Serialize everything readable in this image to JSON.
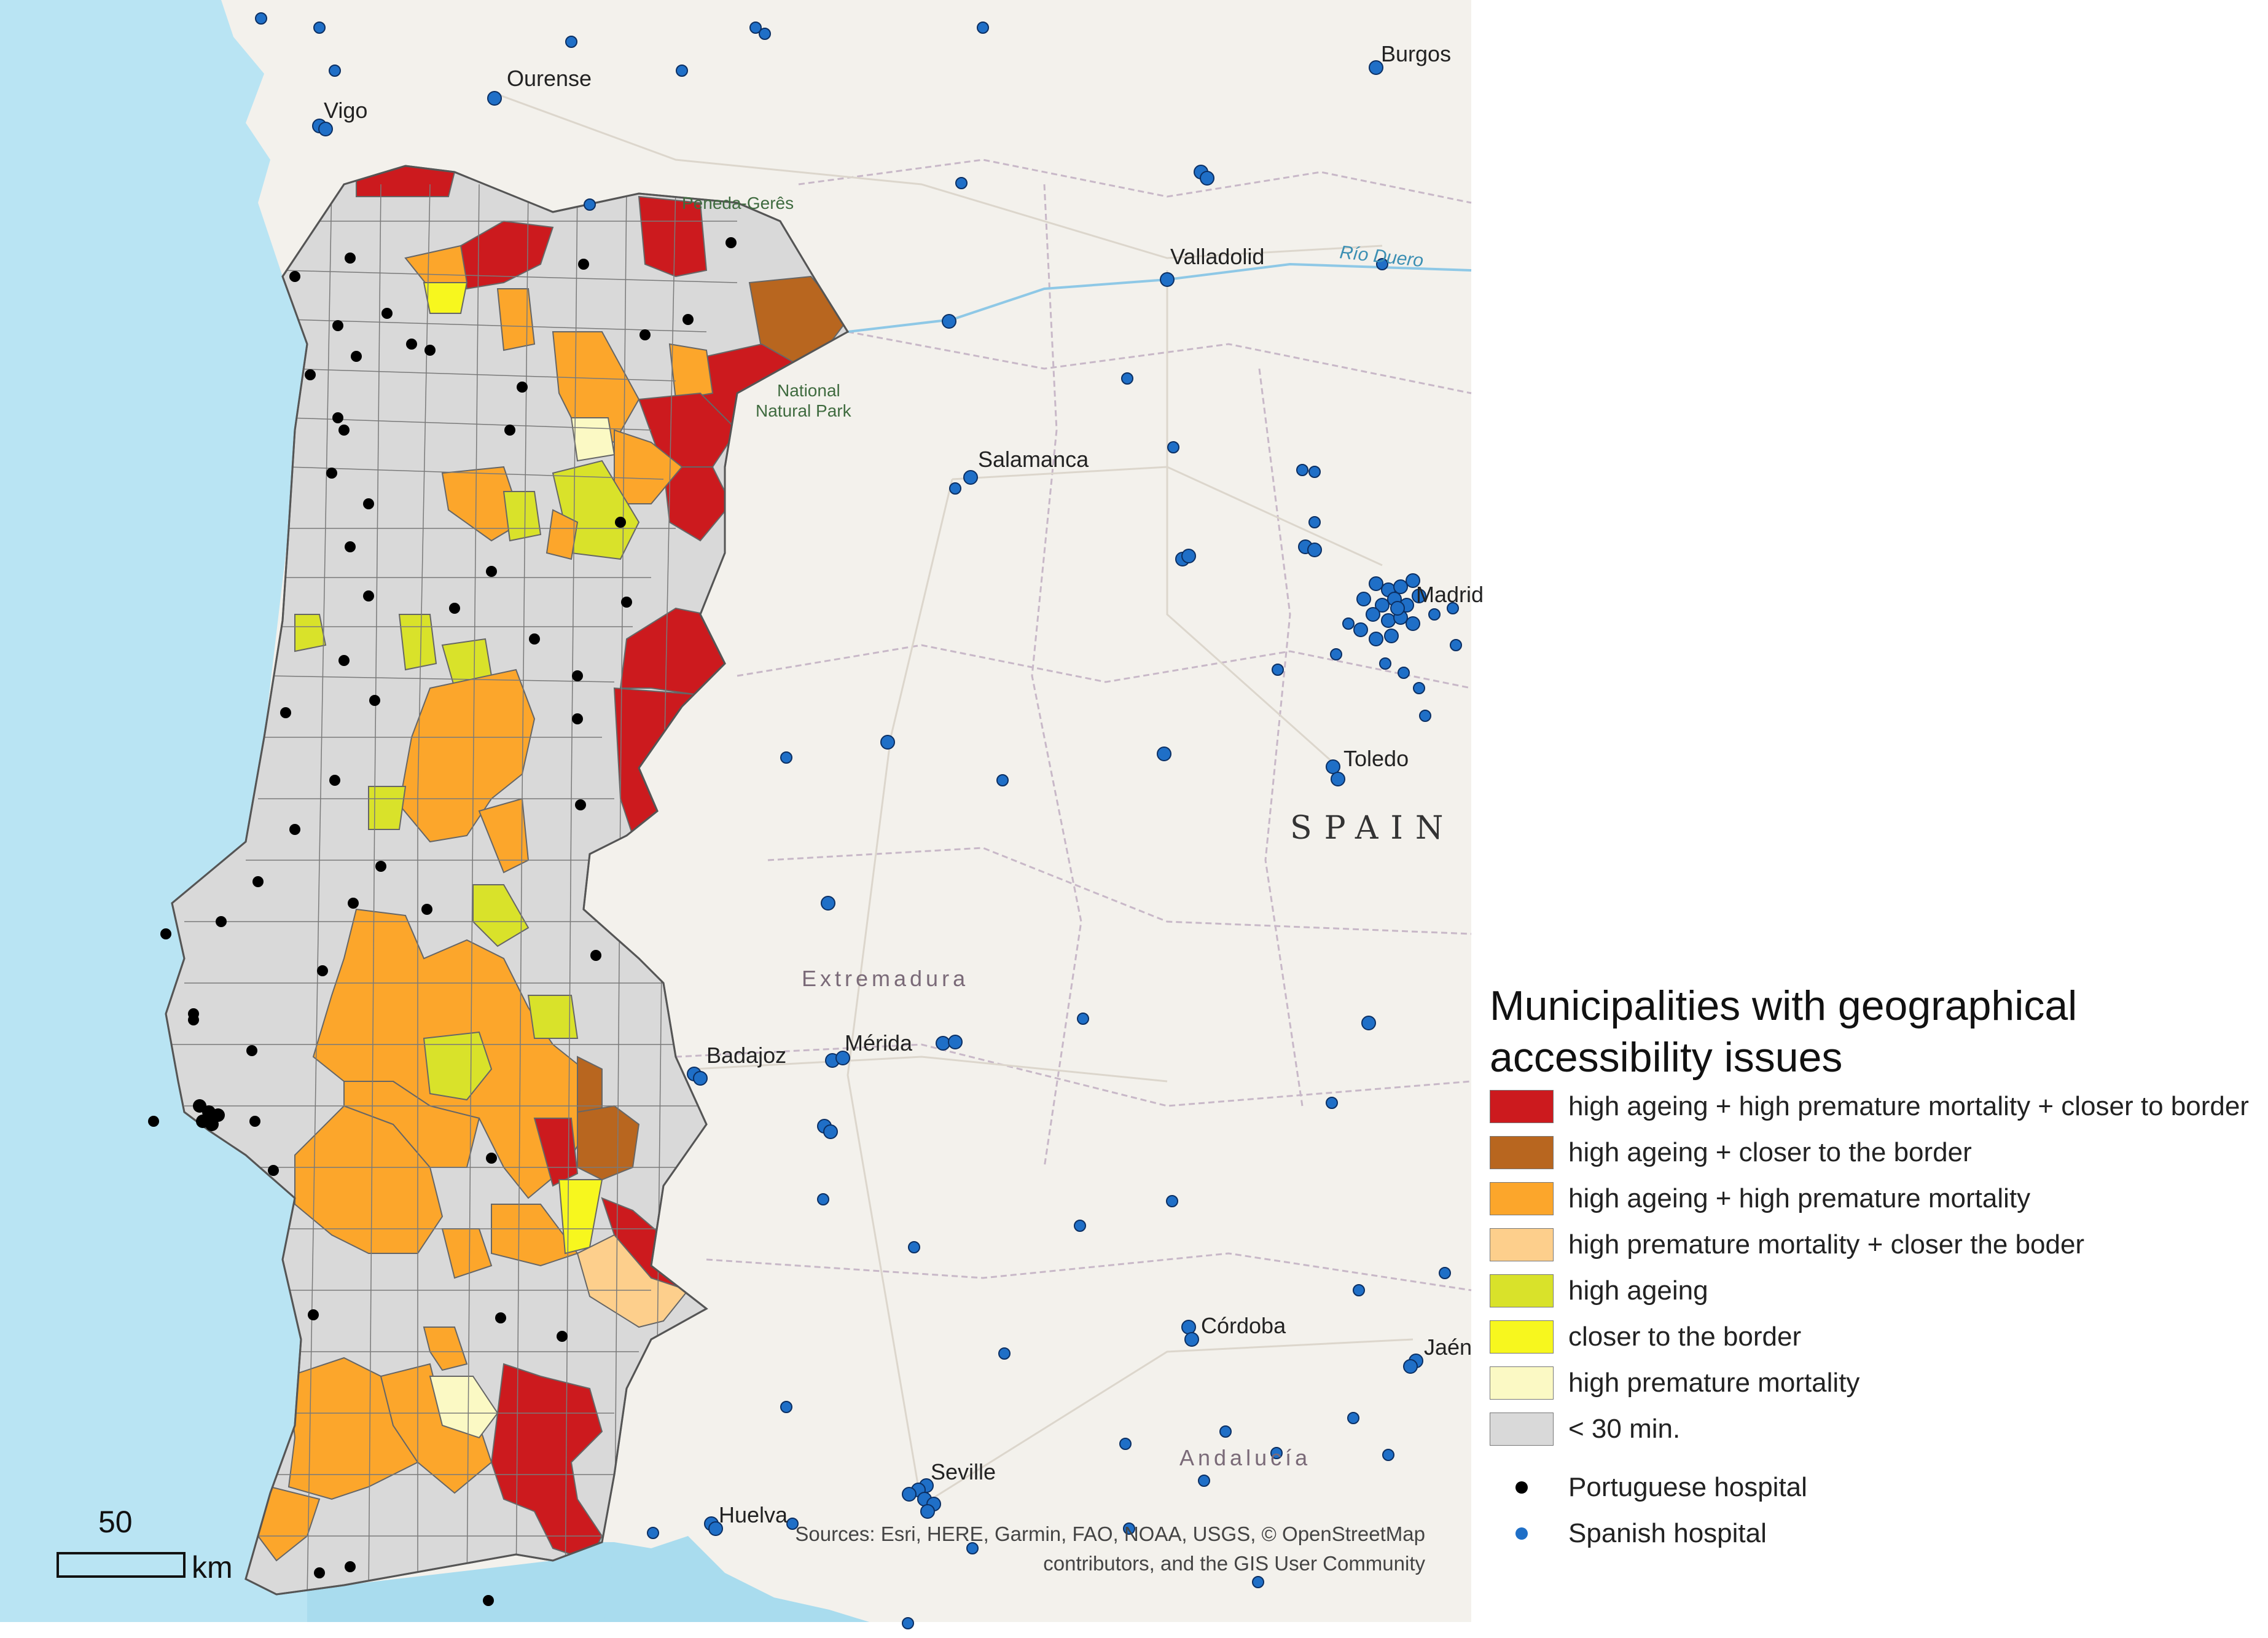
{
  "legend": {
    "title": "Municipalities with geographical accessibility issues",
    "items": [
      {
        "label": "high ageing + high premature mortality + closer to border",
        "color": "#cc1a1e"
      },
      {
        "label": "high ageing + closer to the border",
        "color": "#b8661f"
      },
      {
        "label": "high ageing + high premature mortality",
        "color": "#fca62b"
      },
      {
        "label": "high premature mortality + closer the boder",
        "color": "#fdcf8c"
      },
      {
        "label": "high ageing",
        "color": "#d9e22a"
      },
      {
        "label": "closer to the border",
        "color": "#f7f71e"
      },
      {
        "label": "high premature mortality",
        "color": "#fbf9c4"
      },
      {
        "label": "< 30 min.",
        "color": "#d9d9d9"
      }
    ],
    "hospitals": [
      {
        "label": "Portuguese hospital",
        "color": "#000000"
      },
      {
        "label": "Spanish hospital",
        "color": "#1f6fc7"
      }
    ]
  },
  "labels": {
    "cities": [
      "Ourense",
      "Vigo",
      "Burgos",
      "Valladolid",
      "Salamanca",
      "Toledo",
      "Badajoz",
      "Mérida",
      "Córdoba",
      "Jaén",
      "Seville",
      "Huelva",
      "Madrid"
    ],
    "country": "SPAIN",
    "regions": [
      "Extremadura",
      "Andalucía"
    ],
    "rivers": [
      "Río Duero"
    ],
    "park": [
      "Peneda-Gerês",
      "National",
      "Natural Park"
    ]
  },
  "scale": {
    "value": "50",
    "unit": "km"
  },
  "attribution": [
    "Sources: Esri, HERE, Garmin, FAO, NOAA, USGS, © OpenStreetMap",
    "contributors, and the GIS User Community"
  ],
  "colors": {
    "sea": "#a9dcee",
    "land": "#f3f1ec",
    "portugal_base": "#d9d9d9"
  }
}
